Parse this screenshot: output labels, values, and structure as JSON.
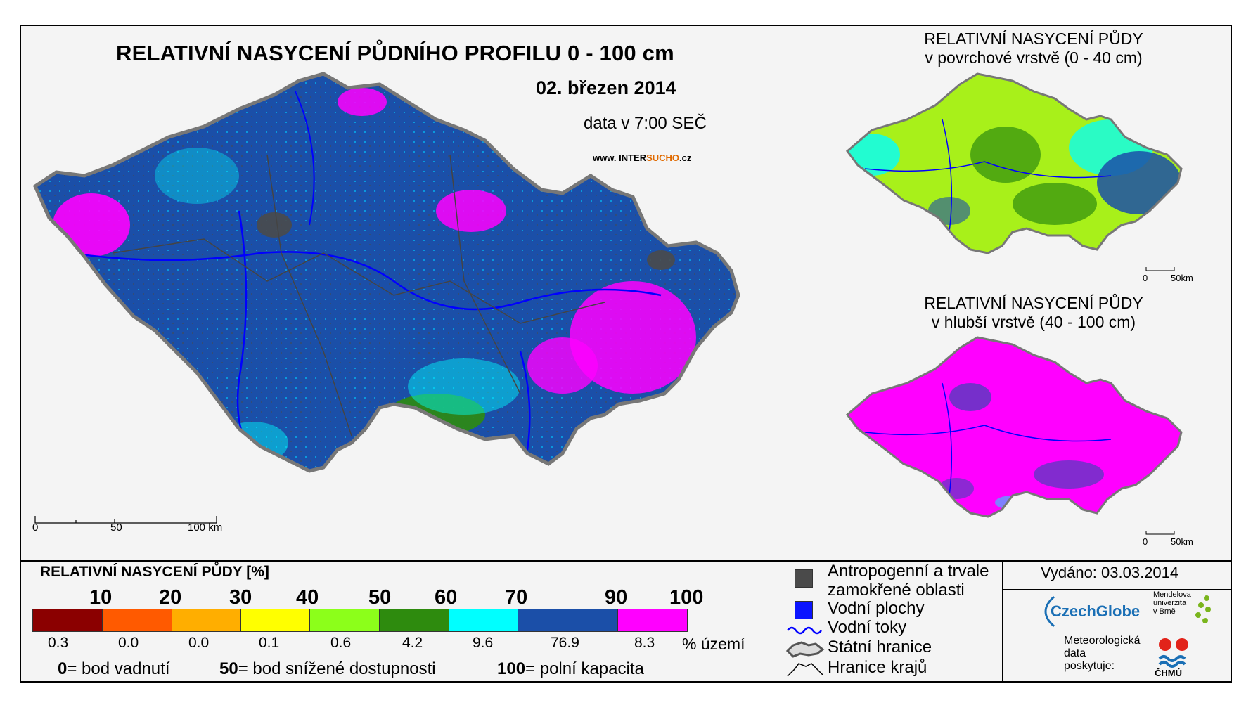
{
  "main_title": "RELATIVNÍ NASYCENÍ PŮDNÍHO PROFILU 0 - 100 cm",
  "date": "02. březen 2014",
  "data_time": "data v 7:00 SEČ",
  "website": {
    "prefix": "www. INTER",
    "accent": "SUCHO",
    "suffix": ".cz"
  },
  "main_scale": {
    "labels": [
      "0",
      "50",
      "100 km"
    ]
  },
  "mini_maps": [
    {
      "title_line1": "RELATIVNÍ NASYCENÍ PŮDY",
      "title_line2": "v povrchové vrstvě (0 - 40 cm)",
      "scale": [
        "0",
        "50km"
      ]
    },
    {
      "title_line1": "RELATIVNÍ NASYCENÍ PŮDY",
      "title_line2": "v hlubší vrstvě (40 - 100 cm)",
      "scale": [
        "0",
        "50km"
      ]
    }
  ],
  "legend": {
    "title": "RELATIVNÍ NASYCENÍ PŮDY [%]",
    "ticks": [
      "10",
      "20",
      "30",
      "40",
      "50",
      "60",
      "70",
      "90",
      "100"
    ],
    "classes": [
      {
        "color": "#8b0000",
        "percent": "0.3"
      },
      {
        "color": "#ff5a00",
        "percent": "0.0"
      },
      {
        "color": "#ffae00",
        "percent": "0.0"
      },
      {
        "color": "#ffff00",
        "percent": "0.1"
      },
      {
        "color": "#8cff1a",
        "percent": "0.6"
      },
      {
        "color": "#2e8b0e",
        "percent": "4.2"
      },
      {
        "color": "#00ffff",
        "percent": "9.6"
      },
      {
        "color": "#1b4fa8",
        "percent": "76.9"
      },
      {
        "color": "#ff00ff",
        "percent": "8.3"
      }
    ],
    "unit_label": "% území",
    "notes": [
      {
        "value": "0",
        "text": "= bod vadnutí"
      },
      {
        "value": "50",
        "text": "= bod snížené dostupnosti"
      },
      {
        "value": "100",
        "text": "= polní kapacita"
      }
    ]
  },
  "symbols": {
    "anthropogenic_line1": "Antropogenní a trvale",
    "anthropogenic_line2": "zamokřené oblasti",
    "water_areas": "Vodní plochy",
    "rivers": "Vodní toky",
    "state_border": "Státní hranice",
    "regional_border": "Hranice krajů"
  },
  "issued": "Vydáno: 03.03.2014",
  "logos": {
    "czechglobe": "CzechGlobe",
    "mendel_line1": "Mendelova",
    "mendel_line2": "univerzita",
    "mendel_line3": "v Brně",
    "meteo_line1": "Meteorologická",
    "meteo_line2": "data",
    "meteo_line3": "poskytuje:",
    "chmu": "ČHMÚ"
  },
  "colors": {
    "blue": "#1b4fa8",
    "magenta": "#ff00ff",
    "cyan": "#00ffff",
    "lime": "#a8f01a",
    "green": "#2e8b0e",
    "anthro": "#4a4a4a"
  }
}
